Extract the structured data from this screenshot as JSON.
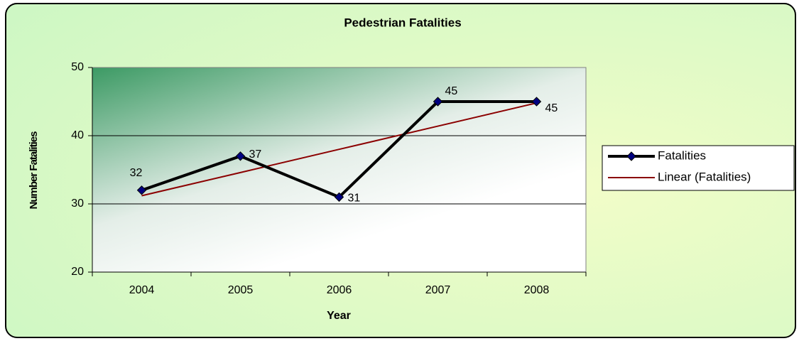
{
  "chart_data": {
    "type": "line",
    "title": "Pedestrian Fatalities",
    "x_label": "Year",
    "y_label": "Number Fatalities",
    "categories": [
      "2004",
      "2005",
      "2006",
      "2007",
      "2008"
    ],
    "series": [
      {
        "name": "Fatalities",
        "color": "#000000",
        "marker_color": "#000080",
        "values": [
          32,
          37,
          31,
          45,
          45
        ]
      },
      {
        "name": "Linear (Fatalities)",
        "color": "#8b0000",
        "values": [
          31.2,
          34.6,
          38,
          41.4,
          44.8
        ]
      }
    ],
    "ylim": [
      20,
      50
    ],
    "yticks": [
      20,
      30,
      40,
      50
    ],
    "grid": true,
    "legend": "right"
  }
}
